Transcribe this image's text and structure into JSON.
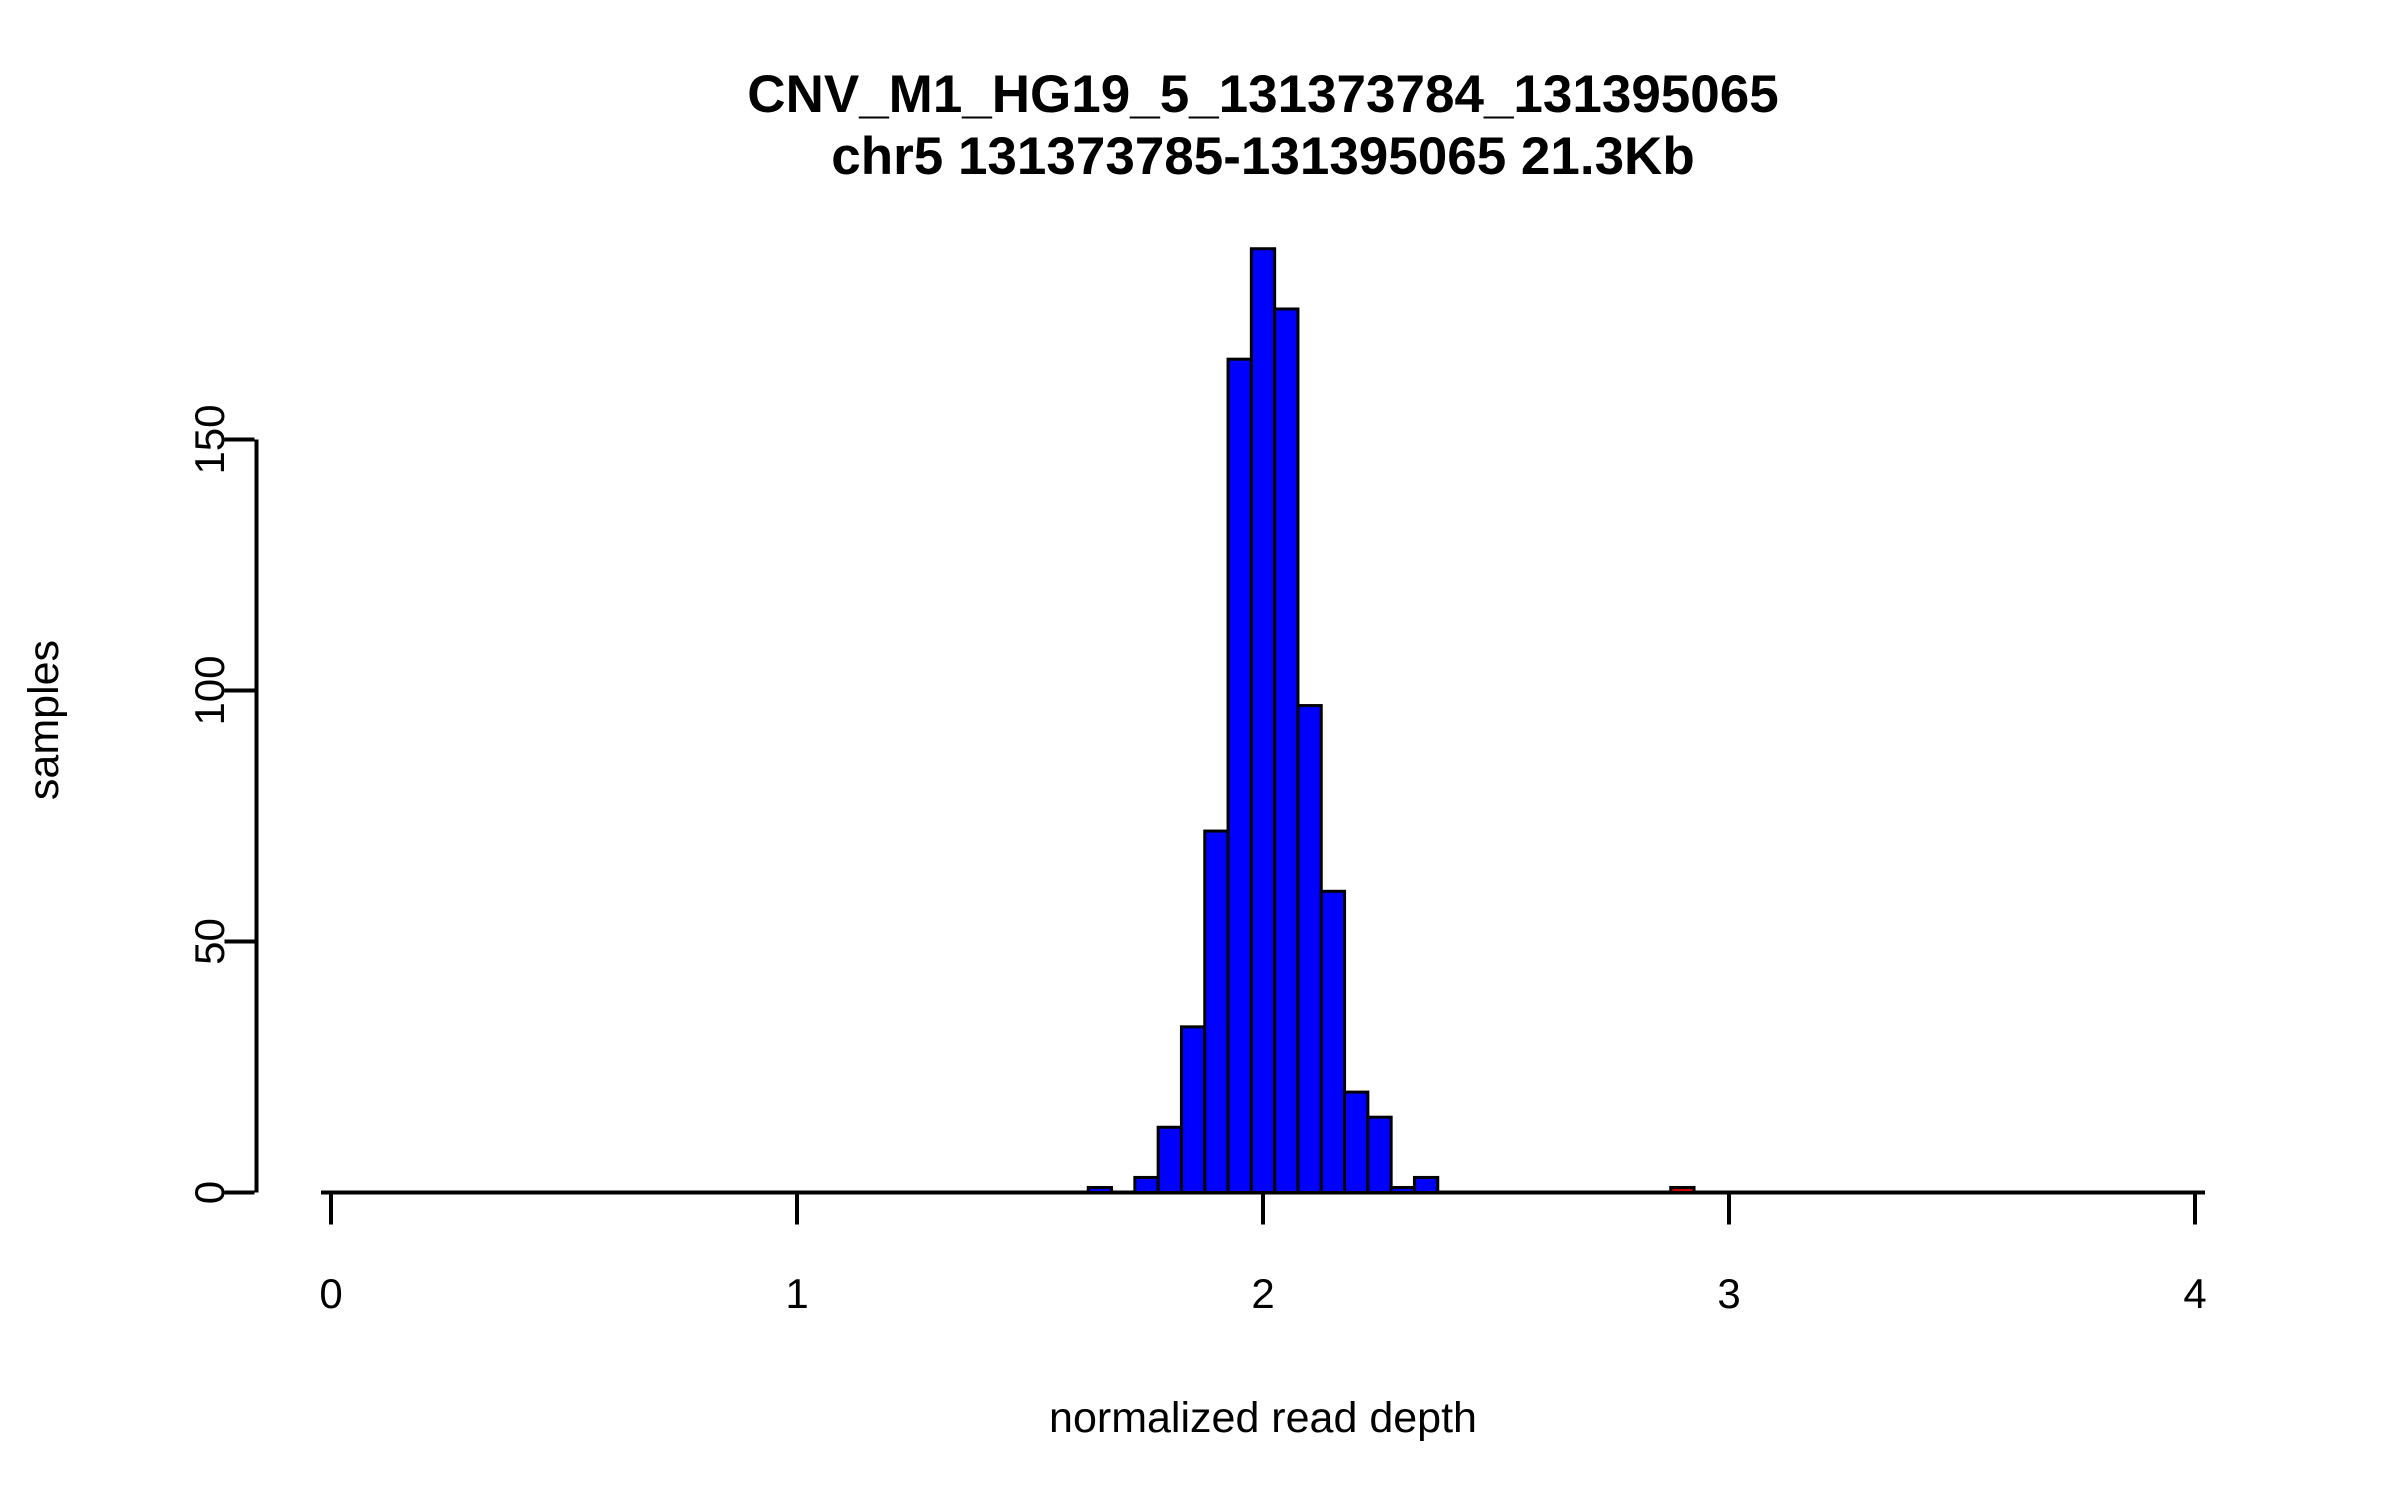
{
  "chart_data": {
    "type": "bar",
    "subtype": "histogram",
    "title": "CNV_M1_HG19_5_131373784_131395065",
    "subtitle": "chr5 131373785-131395065 21.3Kb",
    "xlabel": "normalized read depth",
    "ylabel": "samples",
    "xlim": [
      0,
      4
    ],
    "ylim": [
      0,
      150
    ],
    "x_ticks": [
      "0",
      "1",
      "2",
      "3",
      "4"
    ],
    "x_tick_values": [
      0,
      1,
      2,
      3,
      4
    ],
    "y_ticks": [
      "0",
      "50",
      "100",
      "150"
    ],
    "y_tick_values": [
      0,
      50,
      100,
      150
    ],
    "grid": false,
    "legend": null,
    "bin_width": 0.05,
    "bar_color": "#0000FF",
    "outlier_color": "#CD0000",
    "axis_color": "#000000",
    "background_color": "#FFFFFF",
    "bins": [
      {
        "center": 1.65,
        "count": 1
      },
      {
        "center": 1.7,
        "count": 0
      },
      {
        "center": 1.75,
        "count": 3
      },
      {
        "center": 1.8,
        "count": 13
      },
      {
        "center": 1.85,
        "count": 33
      },
      {
        "center": 1.9,
        "count": 72
      },
      {
        "center": 1.95,
        "count": 166
      },
      {
        "center": 2.0,
        "count": 188
      },
      {
        "center": 2.05,
        "count": 176
      },
      {
        "center": 2.1,
        "count": 97
      },
      {
        "center": 2.15,
        "count": 60
      },
      {
        "center": 2.2,
        "count": 20
      },
      {
        "center": 2.25,
        "count": 15
      },
      {
        "center": 2.3,
        "count": 1
      },
      {
        "center": 2.35,
        "count": 3
      },
      {
        "center": 2.9,
        "count": 1,
        "color": "#CD0000"
      }
    ]
  }
}
